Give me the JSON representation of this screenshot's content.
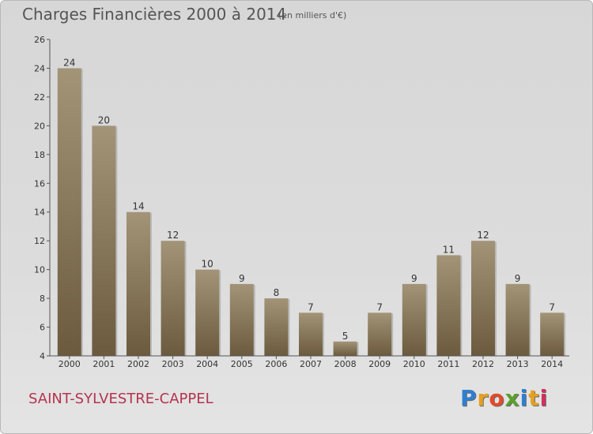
{
  "header": {
    "title": "Charges Financières 2000 à 2014",
    "subtitle": "(en milliers d'€)"
  },
  "footer": {
    "commune": "SAINT-SYLVESTRE-CAPPEL",
    "logo_letters": [
      "P",
      "r",
      "o",
      "x",
      "i",
      "t",
      "i"
    ],
    "logo_colors": [
      "#2f7fd0",
      "#e5a020",
      "#e24a2a",
      "#5aa02c",
      "#2f7fd0",
      "#e5a020",
      "#d2305c"
    ]
  },
  "chart_data": {
    "type": "bar",
    "title": "Charges Financières 2000 à 2014",
    "subtitle": "(en milliers d'€)",
    "categories": [
      "2000",
      "2001",
      "2002",
      "2003",
      "2004",
      "2005",
      "2006",
      "2007",
      "2008",
      "2009",
      "2010",
      "2011",
      "2012",
      "2013",
      "2014"
    ],
    "values": [
      24,
      20,
      14,
      12,
      10,
      9,
      8,
      7,
      5,
      7,
      9,
      11,
      12,
      9,
      7
    ],
    "ylim": [
      4,
      26
    ],
    "yticks": [
      4,
      6,
      8,
      10,
      12,
      14,
      16,
      18,
      20,
      22,
      24,
      26
    ],
    "grid": false,
    "bar_color_top": "#a39478",
    "bar_color_bottom": "#6b5a3e"
  }
}
